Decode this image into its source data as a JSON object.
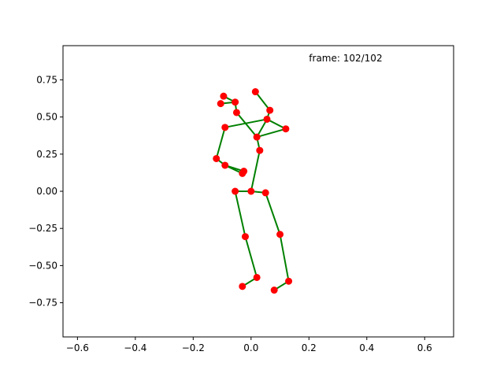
{
  "chart_data": {
    "type": "scatter",
    "title": "",
    "xlabel": "",
    "ylabel": "",
    "xlim": [
      -0.65,
      0.7
    ],
    "ylim": [
      -0.98,
      0.98
    ],
    "xticks": [
      -0.6,
      -0.4,
      -0.2,
      0.0,
      0.2,
      0.4,
      0.6
    ],
    "xtick_labels": [
      "−0.6",
      "−0.4",
      "−0.2",
      "0.0",
      "0.2",
      "0.4",
      "0.6"
    ],
    "yticks": [
      -0.75,
      -0.5,
      -0.25,
      0.0,
      0.25,
      0.5,
      0.75
    ],
    "ytick_labels": [
      "−0.75",
      "−0.50",
      "−0.25",
      "0.00",
      "0.25",
      "0.50",
      "0.75"
    ],
    "grid": false,
    "annotation": "frame: 102/102",
    "annotation_pos": [
      0.2,
      0.875
    ],
    "colors": {
      "points": "#ff0000",
      "bones": "#008000",
      "axes": "#000000",
      "background": "#ffffff"
    },
    "points": [
      {
        "x": 0.0,
        "y": 0.0
      },
      {
        "x": -0.055,
        "y": 0.0
      },
      {
        "x": -0.02,
        "y": -0.305
      },
      {
        "x": 0.02,
        "y": -0.58
      },
      {
        "x": -0.03,
        "y": -0.64
      },
      {
        "x": 0.05,
        "y": -0.01
      },
      {
        "x": 0.1,
        "y": -0.29
      },
      {
        "x": 0.13,
        "y": -0.605
      },
      {
        "x": 0.08,
        "y": -0.665
      },
      {
        "x": 0.03,
        "y": 0.275
      },
      {
        "x": 0.02,
        "y": 0.365
      },
      {
        "x": 0.055,
        "y": 0.485
      },
      {
        "x": 0.065,
        "y": 0.545
      },
      {
        "x": 0.015,
        "y": 0.67
      },
      {
        "x": -0.09,
        "y": 0.43
      },
      {
        "x": -0.12,
        "y": 0.22
      },
      {
        "x": -0.09,
        "y": 0.175
      },
      {
        "x": -0.025,
        "y": 0.135
      },
      {
        "x": -0.03,
        "y": 0.12
      },
      {
        "x": -0.05,
        "y": 0.53
      },
      {
        "x": -0.055,
        "y": 0.6
      },
      {
        "x": -0.095,
        "y": 0.64
      },
      {
        "x": -0.105,
        "y": 0.59
      },
      {
        "x": 0.12,
        "y": 0.42
      }
    ],
    "bones": [
      [
        1,
        0
      ],
      [
        0,
        5
      ],
      [
        1,
        2
      ],
      [
        2,
        3
      ],
      [
        3,
        4
      ],
      [
        5,
        6
      ],
      [
        6,
        7
      ],
      [
        7,
        8
      ],
      [
        0,
        9
      ],
      [
        9,
        10
      ],
      [
        10,
        11
      ],
      [
        11,
        12
      ],
      [
        12,
        13
      ],
      [
        11,
        14
      ],
      [
        14,
        15
      ],
      [
        15,
        16
      ],
      [
        16,
        17
      ],
      [
        16,
        18
      ],
      [
        10,
        19
      ],
      [
        19,
        20
      ],
      [
        20,
        21
      ],
      [
        20,
        22
      ],
      [
        11,
        23
      ],
      [
        23,
        10
      ]
    ]
  }
}
